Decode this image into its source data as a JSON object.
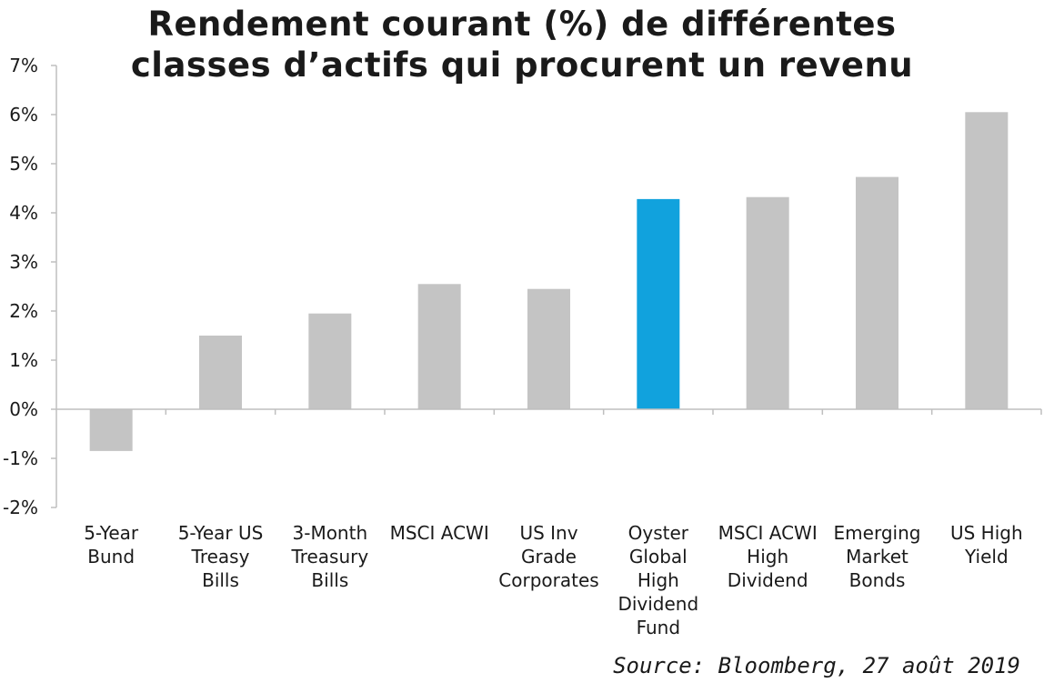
{
  "chart_data": {
    "type": "bar",
    "title": [
      "Rendement courant (%) de différentes",
      "classes d’actifs qui procurent un revenu"
    ],
    "categories": [
      [
        "5-Year",
        "Bund"
      ],
      [
        "5-Year US",
        "Treasy",
        "Bills"
      ],
      [
        "3-Month",
        "Treasury",
        "Bills"
      ],
      [
        "MSCI ACWI"
      ],
      [
        "US Inv",
        "Grade",
        "Corporates"
      ],
      [
        "Oyster",
        "Global",
        "High",
        "Dividend",
        "Fund"
      ],
      [
        "MSCI ACWI",
        "High",
        "Dividend"
      ],
      [
        "Emerging",
        "Market",
        "Bonds"
      ],
      [
        "US High",
        "Yield"
      ]
    ],
    "values": [
      -0.85,
      1.5,
      1.95,
      2.55,
      2.45,
      4.28,
      4.32,
      4.73,
      6.05
    ],
    "highlight_index": 5,
    "ylim": [
      -2,
      7
    ],
    "yticks": [
      -2,
      -1,
      0,
      1,
      2,
      3,
      4,
      5,
      6,
      7
    ],
    "ytick_labels": [
      "-2%",
      "-1%",
      "0%",
      "1%",
      "2%",
      "3%",
      "4%",
      "5%",
      "6%",
      "7%"
    ],
    "xlabel": "",
    "ylabel": "",
    "grid": false,
    "legend": "none",
    "colors": {
      "bar": "#c4c4c4",
      "highlight": "#11a2dd",
      "axis": "#bfbfbf"
    },
    "source": "Source: Bloomberg, 27 août 2019"
  }
}
